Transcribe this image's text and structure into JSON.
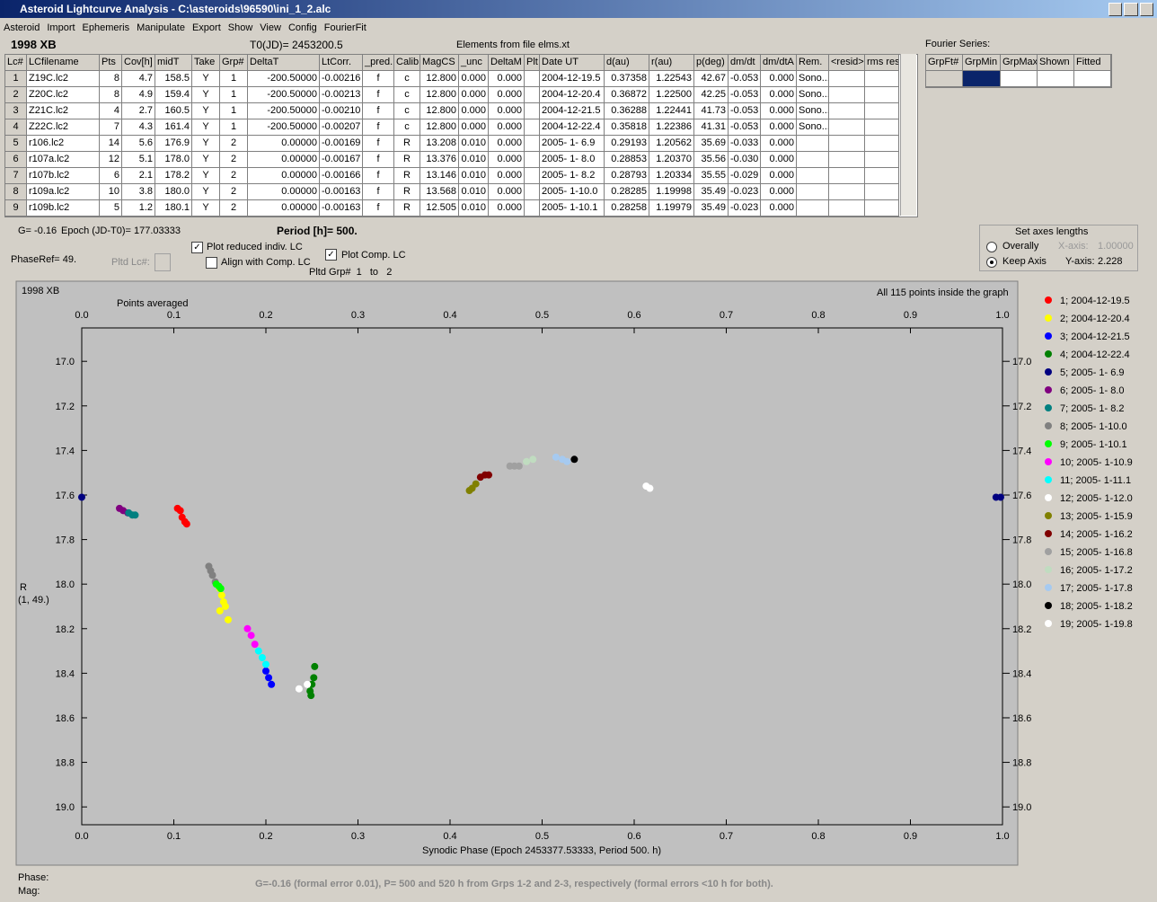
{
  "window": {
    "title": "Asteroid Lightcurve Analysis - C:\\asteroids\\96590\\ini_1_2.alc",
    "menu": [
      "Asteroid",
      "Import",
      "Ephemeris",
      "Manipulate",
      "Export",
      "Show",
      "View",
      "Config",
      "FourierFit"
    ]
  },
  "header": {
    "object": "1998 XB",
    "t0": "T0(JD)= 2453200.5",
    "elements": "Elements from file elms.xt"
  },
  "table": {
    "columns": [
      "Lc#",
      "LCfilename",
      "Pts",
      "Cov[h]",
      "midT",
      "Take",
      "Grp#",
      "DeltaT",
      "LtCorr.",
      "_pred.",
      "Calib.",
      "MagCS",
      "_unc",
      "DeltaM",
      "Plt",
      "Date UT",
      "d(au)",
      "r(au)",
      "p(deg)",
      "dm/dt",
      "dm/dtA",
      "Rem.",
      "<resid>",
      "rms res"
    ],
    "rows": [
      [
        "1",
        "Z19C.lc2",
        "8",
        "4.7",
        "158.5",
        "Y",
        "1",
        "-200.50000",
        "-0.00216",
        "f",
        "c",
        "12.800",
        "0.000",
        "0.000",
        null,
        "2004-12-19.5",
        "0.37358",
        "1.22543",
        "42.67",
        "-0.053",
        "0.000",
        "Sono...",
        null,
        null
      ],
      [
        "2",
        "Z20C.lc2",
        "8",
        "4.9",
        "159.4",
        "Y",
        "1",
        "-200.50000",
        "-0.00213",
        "f",
        "c",
        "12.800",
        "0.000",
        "0.000",
        null,
        "2004-12-20.4",
        "0.36872",
        "1.22500",
        "42.25",
        "-0.053",
        "0.000",
        "Sono...",
        null,
        null
      ],
      [
        "3",
        "Z21C.lc2",
        "4",
        "2.7",
        "160.5",
        "Y",
        "1",
        "-200.50000",
        "-0.00210",
        "f",
        "c",
        "12.800",
        "0.000",
        "0.000",
        null,
        "2004-12-21.5",
        "0.36288",
        "1.22441",
        "41.73",
        "-0.053",
        "0.000",
        "Sono...",
        null,
        null
      ],
      [
        "4",
        "Z22C.lc2",
        "7",
        "4.3",
        "161.4",
        "Y",
        "1",
        "-200.50000",
        "-0.00207",
        "f",
        "c",
        "12.800",
        "0.000",
        "0.000",
        null,
        "2004-12-22.4",
        "0.35818",
        "1.22386",
        "41.31",
        "-0.053",
        "0.000",
        "Sono...",
        null,
        null
      ],
      [
        "5",
        "r106.lc2",
        "14",
        "5.6",
        "176.9",
        "Y",
        "2",
        "0.00000",
        "-0.00169",
        "f",
        "R",
        "13.208",
        "0.010",
        "0.000",
        null,
        "2005- 1- 6.9",
        "0.29193",
        "1.20562",
        "35.69",
        "-0.033",
        "0.000",
        null,
        null,
        null
      ],
      [
        "6",
        "r107a.lc2",
        "12",
        "5.1",
        "178.0",
        "Y",
        "2",
        "0.00000",
        "-0.00167",
        "f",
        "R",
        "13.376",
        "0.010",
        "0.000",
        null,
        "2005- 1- 8.0",
        "0.28853",
        "1.20370",
        "35.56",
        "-0.030",
        "0.000",
        null,
        null,
        null
      ],
      [
        "7",
        "r107b.lc2",
        "6",
        "2.1",
        "178.2",
        "Y",
        "2",
        "0.00000",
        "-0.00166",
        "f",
        "R",
        "13.146",
        "0.010",
        "0.000",
        null,
        "2005- 1- 8.2",
        "0.28793",
        "1.20334",
        "35.55",
        "-0.029",
        "0.000",
        null,
        null,
        null
      ],
      [
        "8",
        "r109a.lc2",
        "10",
        "3.8",
        "180.0",
        "Y",
        "2",
        "0.00000",
        "-0.00163",
        "f",
        "R",
        "13.568",
        "0.010",
        "0.000",
        null,
        "2005- 1-10.0",
        "0.28285",
        "1.19998",
        "35.49",
        "-0.023",
        "0.000",
        null,
        null,
        null
      ],
      [
        "9",
        "r109b.lc2",
        "5",
        "1.2",
        "180.1",
        "Y",
        "2",
        "0.00000",
        "-0.00163",
        "f",
        "R",
        "12.505",
        "0.010",
        "0.000",
        null,
        "2005- 1-10.1",
        "0.28258",
        "1.19979",
        "35.49",
        "-0.023",
        "0.000",
        null,
        null,
        null
      ]
    ]
  },
  "fourier": {
    "label": "Fourier Series:",
    "columns": [
      "GrpFt#",
      "GrpMin",
      "GrpMax",
      "Shown",
      "Fitted"
    ]
  },
  "controls": {
    "g": "G= -0.16",
    "epoch": "Epoch (JD-T0)= 177.03333",
    "period": "Period [h]= 500.",
    "phaseref": "PhaseRef= 49.",
    "pltd_lc": "Pltd Lc#:",
    "plot_reduced": "Plot reduced indiv. LC",
    "align": "Align with Comp. LC",
    "plot_comp": "Plot Comp. LC",
    "pltd_grp": "Pltd Grp#  1   to   2"
  },
  "axes_box": {
    "title": "Set axes lengths",
    "overally": "Overally",
    "keep": "Keep Axis",
    "x_label": "X-axis:",
    "x_value": "1.00000",
    "y_label": "Y-axis:",
    "y_value": "2.228"
  },
  "chart_data": {
    "type": "scatter",
    "title": "1998 XB",
    "note_left": "Points averaged",
    "note_right": "All 115 points inside the graph",
    "ylabel": "R",
    "ylabel_sub": "(1, 49.)",
    "xlabel": "Synodic Phase (Epoch 2453377.53333, Period 500. h)",
    "xlim": [
      0,
      1
    ],
    "ylim": [
      19.08,
      16.85
    ],
    "xticks": [
      {
        "value": 0,
        "label": "0.0"
      },
      0.1,
      0.2,
      0.3,
      0.4,
      0.5,
      0.6,
      0.7,
      0.8,
      0.9,
      {
        "value": 1,
        "label": "1.0"
      }
    ],
    "yticks": [
      {
        "value": 17,
        "label": "17.0"
      },
      17.2,
      17.4,
      17.6,
      17.8,
      {
        "value": 18,
        "label": "18.0"
      },
      18.2,
      18.4,
      18.6,
      18.8,
      {
        "value": 19,
        "label": "19.0"
      }
    ],
    "legend": "right",
    "series": [
      {
        "name": "1; 2004-12-19.5",
        "color": "#ff0000",
        "x": [
          0.104,
          0.107,
          0.109,
          0.112,
          0.114
        ],
        "values": [
          17.66,
          17.67,
          17.7,
          17.72,
          17.73
        ]
      },
      {
        "name": "2; 2004-12-20.4",
        "color": "#ffff00",
        "x": [
          0.15,
          0.152,
          0.154,
          0.156,
          0.15,
          0.159
        ],
        "values": [
          18.02,
          18.05,
          18.08,
          18.1,
          18.12,
          18.16
        ]
      },
      {
        "name": "3; 2004-12-21.5",
        "color": "#0000ff",
        "x": [
          0.2,
          0.203,
          0.206
        ],
        "values": [
          18.39,
          18.42,
          18.45
        ]
      },
      {
        "name": "4; 2004-12-22.4",
        "color": "#008000",
        "x": [
          0.253,
          0.252,
          0.25,
          0.248,
          0.249
        ],
        "values": [
          18.37,
          18.42,
          18.45,
          18.48,
          18.5
        ]
      },
      {
        "name": "5; 2005- 1- 6.9",
        "color": "#000080",
        "x": [
          0,
          0.993,
          0.998
        ],
        "values": [
          17.61,
          17.61,
          17.61
        ]
      },
      {
        "name": "6; 2005- 1- 8.0",
        "color": "#800080",
        "x": [
          0.041,
          0.045,
          0.05
        ],
        "values": [
          17.66,
          17.67,
          17.68
        ]
      },
      {
        "name": "7; 2005- 1- 8.2",
        "color": "#008080",
        "x": [
          0.051,
          0.055,
          0.058
        ],
        "values": [
          17.68,
          17.69,
          17.69
        ]
      },
      {
        "name": "8; 2005- 1-10.0",
        "color": "#808080",
        "x": [
          0.138,
          0.14,
          0.142,
          0.145
        ],
        "values": [
          17.92,
          17.94,
          17.96,
          17.99
        ]
      },
      {
        "name": "9; 2005- 1-10.1",
        "color": "#00ff00",
        "x": [
          0.146,
          0.149,
          0.151
        ],
        "values": [
          18.0,
          18.01,
          18.02
        ]
      },
      {
        "name": "10; 2005- 1-10.9",
        "color": "#ff00ff",
        "x": [
          0.18,
          0.184,
          0.188
        ],
        "values": [
          18.2,
          18.23,
          18.27
        ]
      },
      {
        "name": "11; 2005- 1-11.1",
        "color": "#00ffff",
        "x": [
          0.192,
          0.196,
          0.2
        ],
        "values": [
          18.3,
          18.33,
          18.36
        ]
      },
      {
        "name": "12; 2005- 1-12.0",
        "color": "#ffffff",
        "x": [
          0.236,
          0.245
        ],
        "values": [
          18.47,
          18.45
        ]
      },
      {
        "name": "13; 2005- 1-15.9",
        "color": "#808000",
        "x": [
          0.421,
          0.424,
          0.428
        ],
        "values": [
          17.58,
          17.57,
          17.55
        ]
      },
      {
        "name": "14; 2005- 1-16.2",
        "color": "#800000",
        "x": [
          0.433,
          0.438,
          0.442
        ],
        "values": [
          17.52,
          17.51,
          17.51
        ]
      },
      {
        "name": "15; 2005- 1-16.8",
        "color": "#a0a0a0",
        "x": [
          0.465,
          0.47,
          0.475
        ],
        "values": [
          17.47,
          17.47,
          17.47
        ]
      },
      {
        "name": "16; 2005- 1-17.2",
        "color": "#c0dcc0",
        "x": [
          0.483,
          0.49
        ],
        "values": [
          17.45,
          17.44
        ]
      },
      {
        "name": "17; 2005- 1-17.8",
        "color": "#a6caf0",
        "x": [
          0.515,
          0.522,
          0.527
        ],
        "values": [
          17.43,
          17.44,
          17.45
        ]
      },
      {
        "name": "18; 2005- 1-18.2",
        "color": "#000000",
        "x": [
          0.535
        ],
        "values": [
          17.44
        ]
      },
      {
        "name": "19; 2005- 1-19.8",
        "color": "#ffffff",
        "x": [
          0.613,
          0.617
        ],
        "values": [
          17.56,
          17.57
        ]
      }
    ]
  },
  "status": {
    "phase": "Phase:",
    "mag": "Mag:",
    "message": "G=-0.16 (formal error 0.01), P= 500 and 520 h from Grps 1-2 and 2-3, respectively (formal errors <10 h for both)."
  }
}
